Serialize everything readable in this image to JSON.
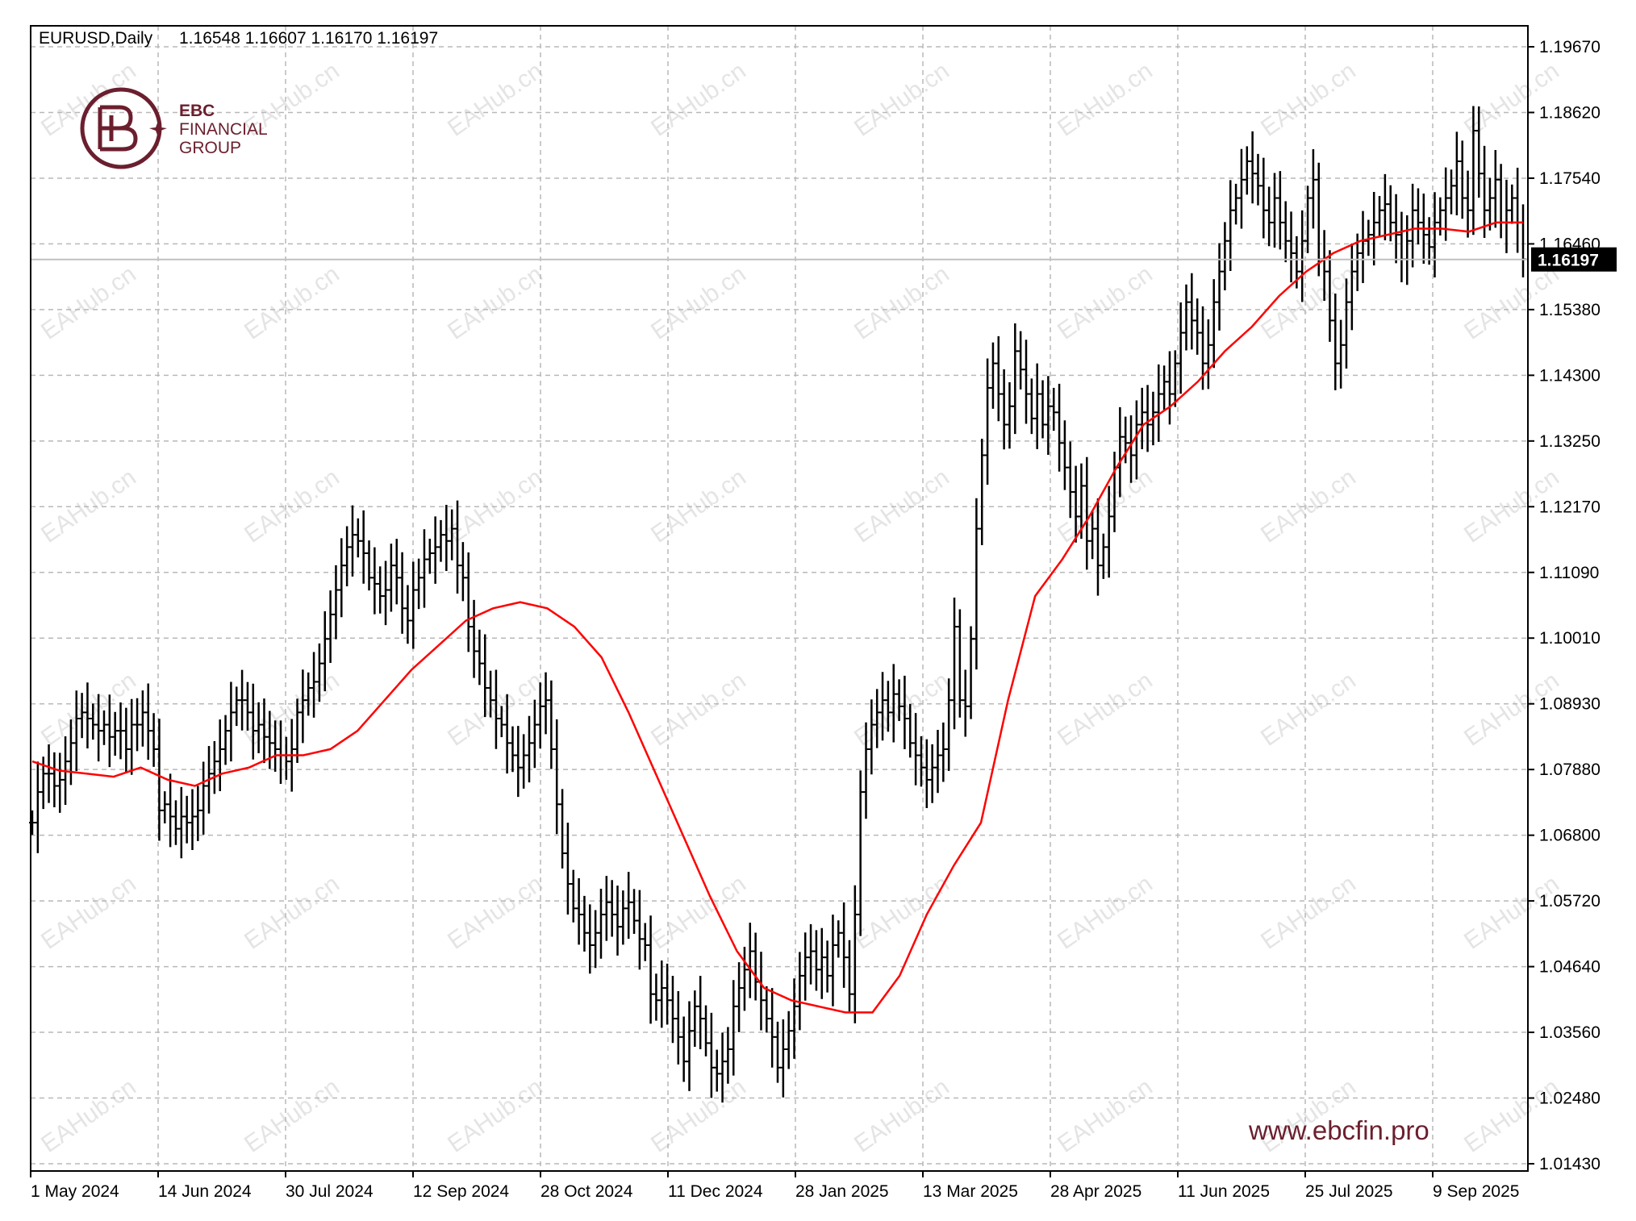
{
  "header": {
    "symbol": "EURUSD,Daily",
    "ohlc": "1.16548 1.16607 1.16170 1.16197"
  },
  "brand": {
    "name_line1": "EBC",
    "name_line2": "FINANCIAL",
    "name_line3": "GROUP",
    "color": "#6b1f2e",
    "website": "www.ebcfin.pro"
  },
  "watermark": "EAHub.cn",
  "current_price_label": "1.16197",
  "colors": {
    "candles": "#000000",
    "ma_line": "#ff0000",
    "grid": "#b8b8b8",
    "price_line": "#c0c0c0",
    "price_label_bg": "#000000",
    "price_label_fg": "#ffffff"
  },
  "chart_data": {
    "type": "line",
    "y_tick_labels": [
      "1.19670",
      "1.18620",
      "1.17540",
      "1.16460",
      "1.15380",
      "1.14300",
      "1.13250",
      "1.12170",
      "1.11090",
      "1.10010",
      "1.08930",
      "1.07880",
      "1.06800",
      "1.05720",
      "1.04640",
      "1.03560",
      "1.02480",
      "1.01430"
    ],
    "ylim": [
      1.0143,
      1.1967
    ],
    "x_tick_labels": [
      "1 May 2024",
      "14 Jun 2024",
      "30 Jul 2024",
      "12 Sep 2024",
      "28 Oct 2024",
      "11 Dec 2024",
      "28 Jan 2025",
      "13 Mar 2025",
      "28 Apr 2025",
      "11 Jun 2025",
      "25 Jul 2025",
      "9 Sep 2025"
    ],
    "grid": true,
    "last_price": 1.16197,
    "series": [
      {
        "kind": "price_bars",
        "values": [
          1.07,
          1.075,
          1.078,
          1.078,
          1.076,
          1.077,
          1.08,
          1.083,
          1.087,
          1.088,
          1.087,
          1.086,
          1.085,
          1.086,
          1.084,
          1.085,
          1.085,
          1.082,
          1.086,
          1.086,
          1.088,
          1.085,
          1.082,
          1.072,
          1.073,
          1.071,
          1.069,
          1.071,
          1.07,
          1.071,
          1.072,
          1.076,
          1.078,
          1.08,
          1.082,
          1.085,
          1.088,
          1.09,
          1.09,
          1.088,
          1.085,
          1.086,
          1.084,
          1.083,
          1.082,
          1.081,
          1.08,
          1.082,
          1.088,
          1.09,
          1.092,
          1.093,
          1.096,
          1.1,
          1.104,
          1.108,
          1.112,
          1.115,
          1.117,
          1.116,
          1.114,
          1.11,
          1.109,
          1.107,
          1.108,
          1.112,
          1.11,
          1.105,
          1.103,
          1.108,
          1.11,
          1.113,
          1.114,
          1.115,
          1.117,
          1.116,
          1.118,
          1.112,
          1.11,
          1.102,
          1.098,
          1.096,
          1.092,
          1.09,
          1.087,
          1.086,
          1.083,
          1.081,
          1.079,
          1.081,
          1.083,
          1.086,
          1.089,
          1.09,
          1.082,
          1.073,
          1.065,
          1.06,
          1.056,
          1.055,
          1.052,
          1.05,
          1.052,
          1.055,
          1.057,
          1.055,
          1.053,
          1.056,
          1.057,
          1.054,
          1.051,
          1.05,
          1.042,
          1.041,
          1.043,
          1.041,
          1.038,
          1.035,
          1.031,
          1.036,
          1.04,
          1.038,
          1.034,
          1.03,
          1.029,
          1.031,
          1.033,
          1.04,
          1.043,
          1.046,
          1.049,
          1.044,
          1.041,
          1.038,
          1.035,
          1.03,
          1.033,
          1.036,
          1.04,
          1.045,
          1.048,
          1.049,
          1.046,
          1.048,
          1.045,
          1.05,
          1.052,
          1.048,
          1.042,
          1.055,
          1.075,
          1.082,
          1.086,
          1.088,
          1.09,
          1.088,
          1.091,
          1.089,
          1.087,
          1.083,
          1.081,
          1.079,
          1.077,
          1.079,
          1.081,
          1.082,
          1.09,
          1.102,
          1.09,
          1.089,
          1.1,
          1.118,
          1.13,
          1.141,
          1.145,
          1.14,
          1.135,
          1.138,
          1.147,
          1.144,
          1.14,
          1.136,
          1.14,
          1.135,
          1.138,
          1.137,
          1.132,
          1.128,
          1.124,
          1.12,
          1.125,
          1.116,
          1.118,
          1.112,
          1.115,
          1.12,
          1.128,
          1.133,
          1.132,
          1.13,
          1.135,
          1.137,
          1.135,
          1.137,
          1.14,
          1.142,
          1.14,
          1.145,
          1.15,
          1.155,
          1.152,
          1.15,
          1.145,
          1.148,
          1.155,
          1.16,
          1.165,
          1.17,
          1.172,
          1.175,
          1.178,
          1.176,
          1.174,
          1.17,
          1.168,
          1.172,
          1.168,
          1.165,
          1.163,
          1.16,
          1.165,
          1.172,
          1.175,
          1.162,
          1.16,
          1.152,
          1.145,
          1.148,
          1.155,
          1.16,
          1.163,
          1.165,
          1.166,
          1.168,
          1.17,
          1.171,
          1.168,
          1.166,
          1.162,
          1.165,
          1.17,
          1.168,
          1.166,
          1.164,
          1.168,
          1.17,
          1.172,
          1.174,
          1.178,
          1.172,
          1.17,
          1.183,
          1.176,
          1.17,
          1.172,
          1.175,
          1.168,
          1.17,
          1.172,
          1.168,
          1.162
        ]
      },
      {
        "name": "",
        "kind": "moving_average",
        "values": [
          1.08,
          1.0785,
          1.078,
          1.0775,
          1.079,
          1.077,
          1.076,
          1.078,
          1.079,
          1.081,
          1.081,
          1.082,
          1.085,
          1.09,
          1.095,
          1.099,
          1.103,
          1.105,
          1.106,
          1.105,
          1.102,
          1.097,
          1.088,
          1.078,
          1.068,
          1.058,
          1.049,
          1.043,
          1.041,
          1.04,
          1.039,
          1.039,
          1.045,
          1.055,
          1.063,
          1.07,
          1.09,
          1.107,
          1.113,
          1.12,
          1.128,
          1.135,
          1.138,
          1.142,
          1.147,
          1.151,
          1.156,
          1.16,
          1.163,
          1.165,
          1.166,
          1.167,
          1.167,
          1.1665,
          1.168,
          1.168
        ]
      }
    ]
  }
}
